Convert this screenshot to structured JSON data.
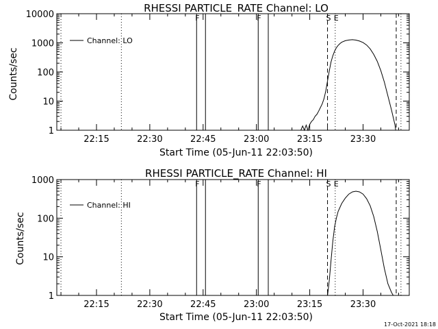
{
  "footer": {
    "timestamp": "17-Oct-2021 18:18"
  },
  "chart_data": [
    {
      "type": "line",
      "title": "RHESSI PARTICLE_RATE Channel: LO",
      "xlabel": "Start Time (05-Jun-11 22:03:50)",
      "ylabel": "Counts/sec",
      "yscale": "log",
      "xlim": [
        "22:03:50",
        "23:43:00"
      ],
      "ylim": [
        1,
        10000
      ],
      "x_tick_labels": [
        "22:15",
        "22:30",
        "22:45",
        "23:00",
        "23:15",
        "23:30"
      ],
      "y_tick_labels": [
        "1",
        "10",
        "100",
        "1000",
        "10000"
      ],
      "legend": {
        "placement": "top-left",
        "entries": [
          "Channel: LO"
        ]
      },
      "grid": false,
      "event_markers": [
        {
          "type": "dotted",
          "time": "22:05"
        },
        {
          "type": "dotted",
          "time": "22:22"
        },
        {
          "type": "solid",
          "time": "22:43:10",
          "label": "F"
        },
        {
          "type": "solid",
          "time": "22:45:40"
        },
        {
          "type": "solid",
          "time": "23:00:30",
          "label": "F"
        },
        {
          "type": "solid",
          "time": "23:03:20"
        },
        {
          "type": "dashed",
          "time": "23:20",
          "label": "S"
        },
        {
          "type": "dotted",
          "time": "23:22:10",
          "label": "E"
        },
        {
          "type": "dashed",
          "time": "23:39:20"
        },
        {
          "type": "dotted",
          "time": "23:40:40"
        }
      ],
      "series": [
        {
          "name": "Channel: LO",
          "x": [
            "23:12:30",
            "23:13:00",
            "23:13:30",
            "23:14:00",
            "23:14:30",
            "23:15:00",
            "23:15:30",
            "23:16:00",
            "23:16:30",
            "23:17:00",
            "23:17:30",
            "23:18:00",
            "23:18:30",
            "23:19:00",
            "23:19:30",
            "23:20:00",
            "23:20:30",
            "23:21:00",
            "23:21:30",
            "23:22:00",
            "23:22:30",
            "23:23:00",
            "23:23:30",
            "23:24:00",
            "23:25:00",
            "23:26:00",
            "23:27:00",
            "23:28:00",
            "23:29:00",
            "23:30:00",
            "23:31:00",
            "23:32:00",
            "23:33:00",
            "23:34:00",
            "23:35:00",
            "23:36:00",
            "23:37:00",
            "23:38:00",
            "23:39:00",
            "23:39:10"
          ],
          "y": [
            1,
            1.4,
            1,
            1.5,
            1,
            1.6,
            2,
            2.3,
            3,
            3.5,
            4.5,
            6,
            8,
            12,
            22,
            50,
            110,
            220,
            360,
            520,
            680,
            820,
            940,
            1050,
            1180,
            1250,
            1280,
            1240,
            1150,
            1020,
            840,
            620,
            400,
            230,
            110,
            45,
            15,
            5,
            1.5,
            1
          ]
        }
      ]
    },
    {
      "type": "line",
      "title": "RHESSI PARTICLE_RATE Channel: HI",
      "xlabel": "Start Time (05-Jun-11 22:03:50)",
      "ylabel": "Counts/sec",
      "yscale": "log",
      "xlim": [
        "22:03:50",
        "23:43:00"
      ],
      "ylim": [
        1,
        1000
      ],
      "x_tick_labels": [
        "22:15",
        "22:30",
        "22:45",
        "23:00",
        "23:15",
        "23:30"
      ],
      "y_tick_labels": [
        "1",
        "10",
        "100",
        "1000"
      ],
      "legend": {
        "placement": "top-left",
        "entries": [
          "Channel: HI"
        ]
      },
      "grid": false,
      "event_markers": [
        {
          "type": "dotted",
          "time": "22:05"
        },
        {
          "type": "dotted",
          "time": "22:22"
        },
        {
          "type": "solid",
          "time": "22:43:10",
          "label": "F"
        },
        {
          "type": "solid",
          "time": "22:45:40"
        },
        {
          "type": "solid",
          "time": "23:00:30",
          "label": "F"
        },
        {
          "type": "solid",
          "time": "23:03:20"
        },
        {
          "type": "dashed",
          "time": "23:20",
          "label": "S"
        },
        {
          "type": "dotted",
          "time": "23:22:10",
          "label": "E"
        },
        {
          "type": "dashed",
          "time": "23:39:20"
        },
        {
          "type": "dotted",
          "time": "23:40:40"
        }
      ],
      "series": [
        {
          "name": "Channel: HI",
          "x": [
            "23:20:00",
            "23:20:30",
            "23:21:00",
            "23:21:30",
            "23:22:00",
            "23:22:30",
            "23:23:00",
            "23:24:00",
            "23:25:00",
            "23:26:00",
            "23:27:00",
            "23:28:00",
            "23:29:00",
            "23:30:00",
            "23:31:00",
            "23:32:00",
            "23:33:00",
            "23:34:00",
            "23:35:00",
            "23:36:00",
            "23:37:00",
            "23:38:00",
            "23:38:30"
          ],
          "y": [
            1,
            2.5,
            8,
            25,
            60,
            100,
            150,
            240,
            330,
            420,
            480,
            500,
            480,
            420,
            320,
            210,
            110,
            45,
            15,
            5,
            2,
            1.2,
            1
          ]
        }
      ]
    }
  ]
}
